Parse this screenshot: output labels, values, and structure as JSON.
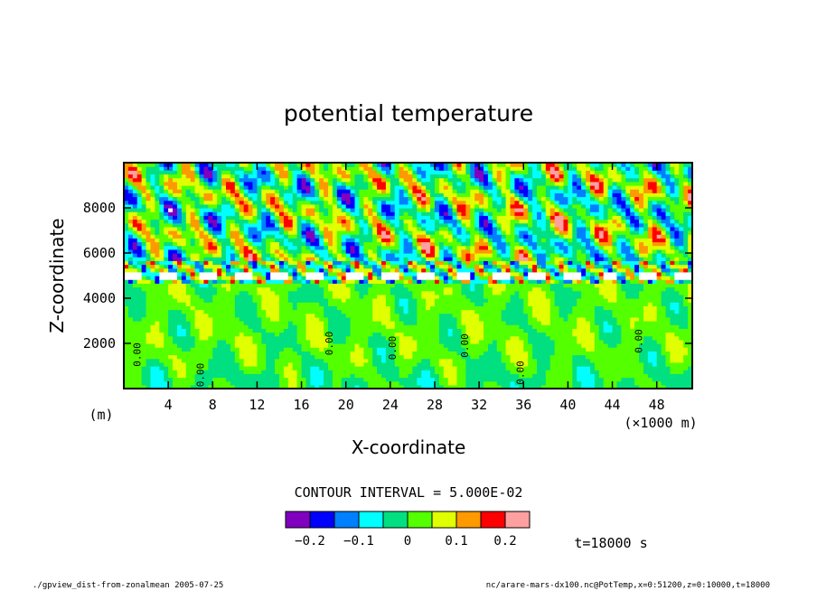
{
  "chart_data": {
    "type": "heatmap",
    "title": "potential temperature",
    "xlabel": "X-coordinate",
    "ylabel": "Z-coordinate",
    "x_unit": "(×1000 m)",
    "y_unit": "(m)",
    "xlim": [
      0,
      51.2
    ],
    "ylim": [
      0,
      10000
    ],
    "x_ticks": [
      4,
      8,
      12,
      16,
      20,
      24,
      28,
      32,
      36,
      40,
      44,
      48
    ],
    "y_ticks": [
      2000,
      4000,
      6000,
      8000
    ],
    "x_tick_labels": [
      "4",
      "8",
      "12",
      "16",
      "20",
      "24",
      "28",
      "32",
      "36",
      "40",
      "44",
      "48"
    ],
    "y_tick_labels": [
      "2000",
      "4000",
      "6000",
      "8000"
    ],
    "contour_interval_label": "CONTOUR INTERVAL = 5.000E-02",
    "contour_labels": [
      "0.00",
      "0.00",
      "0.00",
      "0.00",
      "0.00",
      "0.00",
      "0.00"
    ],
    "colorbar": {
      "colors": [
        "#7f00bf",
        "#0000ff",
        "#007fff",
        "#00ffff",
        "#00e080",
        "#54ff00",
        "#e0ff00",
        "#ff9900",
        "#ff0000",
        "#ffa0a0"
      ],
      "tick_labels": [
        "−0.2",
        "−0.1",
        "0",
        "0.1",
        "0.2"
      ],
      "tick_values": [
        -0.2,
        -0.1,
        0,
        0.1,
        0.2
      ],
      "min": -0.25,
      "max": 0.25
    },
    "time_label": "t=18000 s"
  },
  "footer": {
    "left": "./gpview_dist-from-zonalmean   2005-07-25",
    "right": "nc/arare-mars-dx100.nc@PotTemp,x=0:51200,z=0:10000,t=18000"
  }
}
